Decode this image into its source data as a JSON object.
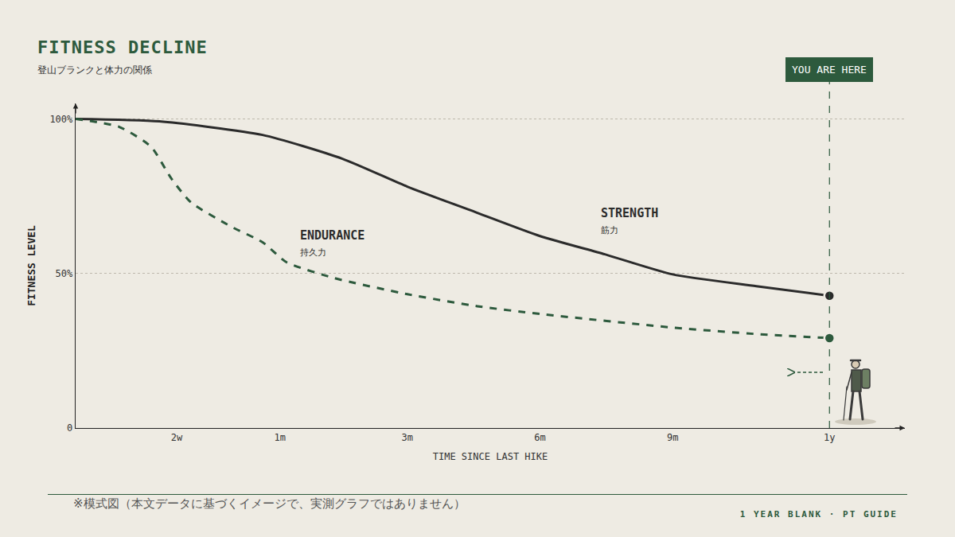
{
  "chart_data": {
    "type": "line",
    "title": "FITNESS DECLINE",
    "subtitle": "登山ブランクと体力の関係",
    "xlabel": "TIME SINCE LAST HIKE",
    "ylabel": "FITNESS LEVEL",
    "xlim": [
      0,
      1.1
    ],
    "xticks": [
      {
        "value": 0.134,
        "label": "2w"
      },
      {
        "value": 0.271,
        "label": "1m"
      },
      {
        "value": 0.44,
        "label": "3m"
      },
      {
        "value": 0.616,
        "label": "6m"
      },
      {
        "value": 0.792,
        "label": "9m"
      },
      {
        "value": 1.0,
        "label": "1y"
      }
    ],
    "ylim": [
      0,
      105
    ],
    "yticks": [
      0,
      {
        "value": 50,
        "label": "50%"
      },
      {
        "value": 100,
        "label": "100%"
      }
    ],
    "grid": true,
    "series": [
      {
        "name": "STRENGTH",
        "subtitle": "筋力",
        "color": "#2b2b2b",
        "line_style": "solid",
        "marker": "circle",
        "x": [
          0,
          0.111,
          0.248,
          0.354,
          0.44,
          0.533,
          0.616,
          0.702,
          0.792,
          0.903,
          1.0
        ],
        "values": [
          100,
          99.2,
          94.8,
          87.1,
          78.1,
          69.6,
          62.1,
          56.2,
          49.7,
          45.9,
          42.8
        ]
      },
      {
        "name": "ENDURANCE",
        "subtitle": "持久力",
        "color": "#2d5a3d",
        "line_style": "dash",
        "marker": "circle",
        "x": [
          0,
          0.058,
          0.1,
          0.127,
          0.153,
          0.206,
          0.248,
          0.28,
          0.343,
          0.44,
          0.533,
          0.616,
          0.792,
          0.903,
          1.0
        ],
        "values": [
          100,
          97.4,
          91.0,
          80.7,
          73.0,
          65.2,
          60.1,
          53.6,
          48.5,
          43.3,
          39.4,
          36.9,
          32.5,
          30.4,
          29.1
        ]
      }
    ],
    "annotations": [
      {
        "text": "YOU ARE HERE",
        "x": 1.0
      }
    ],
    "note": "※模式図（本文データに基づくイメージで、実測グラフではありません）",
    "footer": "1 YEAR BLANK · PT GUIDE"
  }
}
